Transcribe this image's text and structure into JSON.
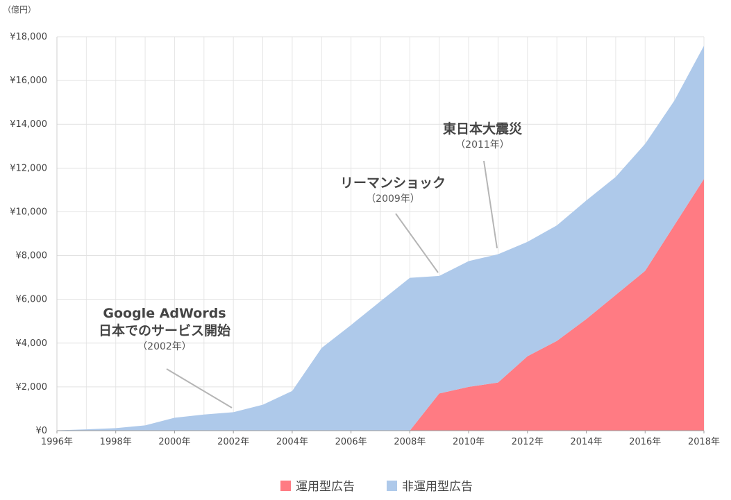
{
  "chart_data": {
    "type": "area",
    "stacked": true,
    "y_unit": "（億円）",
    "ylim": [
      0,
      18000
    ],
    "yticks": [
      {
        "value": 0,
        "label": "¥0"
      },
      {
        "value": 2000,
        "label": "¥2,000"
      },
      {
        "value": 4000,
        "label": "¥4,000"
      },
      {
        "value": 6000,
        "label": "¥6,000"
      },
      {
        "value": 8000,
        "label": "¥8,000"
      },
      {
        "value": 10000,
        "label": "¥10,000"
      },
      {
        "value": 12000,
        "label": "¥12,000"
      },
      {
        "value": 14000,
        "label": "¥14,000"
      },
      {
        "value": 16000,
        "label": "¥16,000"
      },
      {
        "value": 18000,
        "label": "¥18,000"
      }
    ],
    "x": [
      1996,
      1997,
      1998,
      1999,
      2000,
      2001,
      2002,
      2003,
      2004,
      2005,
      2006,
      2007,
      2008,
      2009,
      2010,
      2011,
      2012,
      2013,
      2014,
      2015,
      2016,
      2017,
      2018
    ],
    "xticks": [
      {
        "value": 1996,
        "label": "1996年"
      },
      {
        "value": 1998,
        "label": "1998年"
      },
      {
        "value": 2000,
        "label": "2000年"
      },
      {
        "value": 2002,
        "label": "2002年"
      },
      {
        "value": 2004,
        "label": "2004年"
      },
      {
        "value": 2006,
        "label": "2006年"
      },
      {
        "value": 2008,
        "label": "2008年"
      },
      {
        "value": 2010,
        "label": "2010年"
      },
      {
        "value": 2012,
        "label": "2012年"
      },
      {
        "value": 2014,
        "label": "2014年"
      },
      {
        "value": 2016,
        "label": "2016年"
      },
      {
        "value": 2018,
        "label": "2018年"
      }
    ],
    "series": [
      {
        "name": "運用型広告",
        "color": "#ff7b83",
        "values": [
          0,
          0,
          0,
          0,
          0,
          0,
          0,
          0,
          0,
          0,
          0,
          0,
          0,
          1700,
          2000,
          2200,
          3400,
          4100,
          5100,
          6200,
          7300,
          9400,
          11500
        ]
      },
      {
        "name": "非運用型広告",
        "color": "#aec9ea",
        "values": [
          16,
          60,
          114,
          241,
          590,
          735,
          845,
          1183,
          1814,
          3777,
          4826,
          5912,
          6983,
          5369,
          5747,
          5862,
          5229,
          5281,
          5419,
          5394,
          5802,
          5694,
          6089
        ]
      }
    ],
    "grid": true,
    "legend": "bottom",
    "annotations": [
      {
        "title_lines": [
          "Google AdWords",
          "日本でのサービス開始"
        ],
        "year_label": "（2002年）",
        "year": 2002
      },
      {
        "title_lines": [
          "リーマンショック"
        ],
        "year_label": "（2009年）",
        "year": 2009
      },
      {
        "title_lines": [
          "東日本大震災"
        ],
        "year_label": "（2011年）",
        "year": 2011
      }
    ]
  }
}
